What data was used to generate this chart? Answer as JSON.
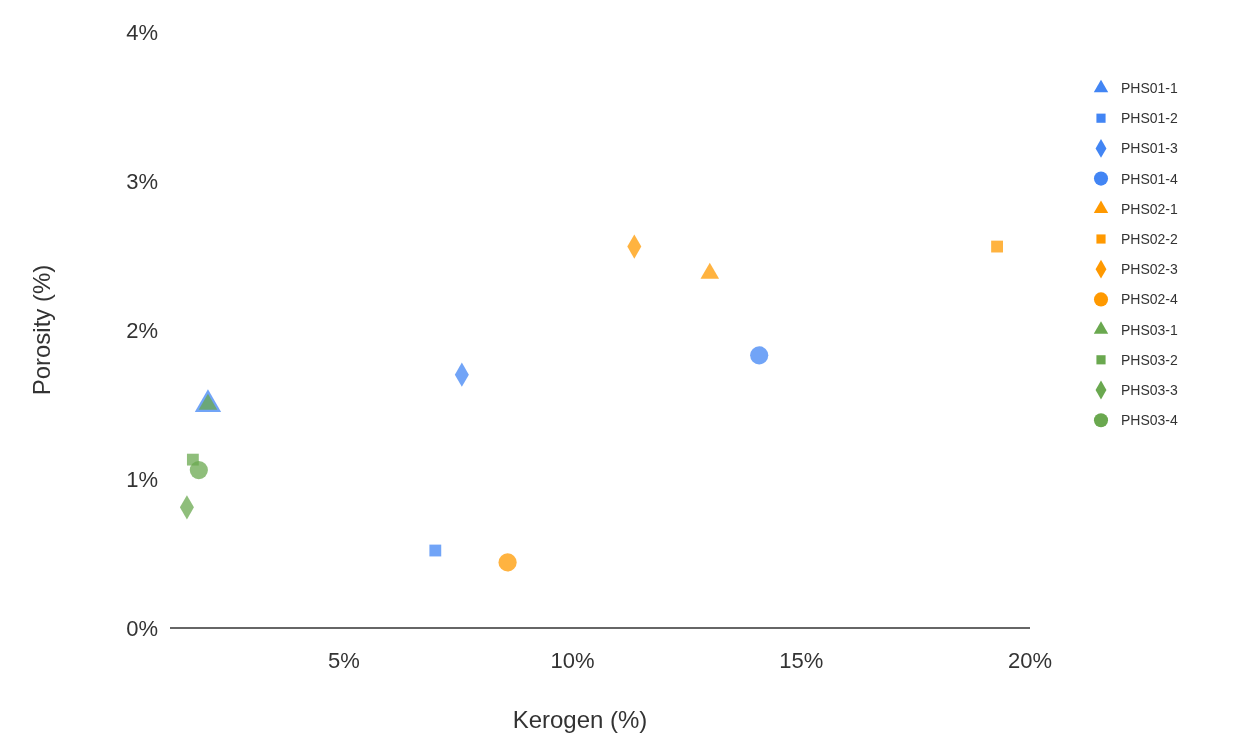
{
  "chart_data": {
    "type": "scatter",
    "xlabel": "Kerogen (%)",
    "ylabel": "Porosity (%)",
    "xlim": [
      1.2,
      20
    ],
    "xticks": [
      {
        "value": 5,
        "label": "5%"
      },
      {
        "value": 10,
        "label": "10%"
      },
      {
        "value": 15,
        "label": "15%"
      },
      {
        "value": 20,
        "label": "20%"
      }
    ],
    "ylim": [
      0,
      4
    ],
    "yticks": [
      {
        "value": 0,
        "label": "0%"
      },
      {
        "value": 1,
        "label": "1%"
      },
      {
        "value": 2,
        "label": "2%"
      },
      {
        "value": 3,
        "label": "3%"
      },
      {
        "value": 4,
        "label": "4%"
      }
    ],
    "legend": "right",
    "grid": false,
    "series": [
      {
        "name": "PHS01-1",
        "color": "#4285f4",
        "marker": "triangle",
        "x": [
          2.03
        ],
        "values": [
          1.5
        ]
      },
      {
        "name": "PHS01-2",
        "color": "#4285f4",
        "marker": "square",
        "x": [
          7.0
        ],
        "values": [
          0.52
        ]
      },
      {
        "name": "PHS01-3",
        "color": "#4285f4",
        "marker": "diamond",
        "x": [
          7.58
        ],
        "values": [
          1.7
        ]
      },
      {
        "name": "PHS01-4",
        "color": "#4285f4",
        "marker": "circle",
        "x": [
          14.08
        ],
        "values": [
          1.83
        ]
      },
      {
        "name": "PHS02-1",
        "color": "#ff9900",
        "marker": "triangle",
        "x": [
          13.0
        ],
        "values": [
          2.38
        ]
      },
      {
        "name": "PHS02-2",
        "color": "#ff9900",
        "marker": "square",
        "x": [
          19.28
        ],
        "values": [
          2.56
        ]
      },
      {
        "name": "PHS02-3",
        "color": "#ff9900",
        "marker": "diamond",
        "x": [
          11.35
        ],
        "values": [
          2.56
        ]
      },
      {
        "name": "PHS02-4",
        "color": "#ff9900",
        "marker": "circle",
        "x": [
          8.58
        ],
        "values": [
          0.44
        ]
      },
      {
        "name": "PHS03-1",
        "color": "#6aa84f",
        "marker": "triangle",
        "x": [
          2.03
        ],
        "values": [
          1.5
        ]
      },
      {
        "name": "PHS03-2",
        "color": "#6aa84f",
        "marker": "square",
        "x": [
          1.7
        ],
        "values": [
          1.13
        ]
      },
      {
        "name": "PHS03-3",
        "color": "#6aa84f",
        "marker": "diamond",
        "x": [
          1.57
        ],
        "values": [
          0.81
        ]
      },
      {
        "name": "PHS03-4",
        "color": "#6aa84f",
        "marker": "circle",
        "x": [
          1.83
        ],
        "values": [
          1.06
        ]
      }
    ]
  }
}
